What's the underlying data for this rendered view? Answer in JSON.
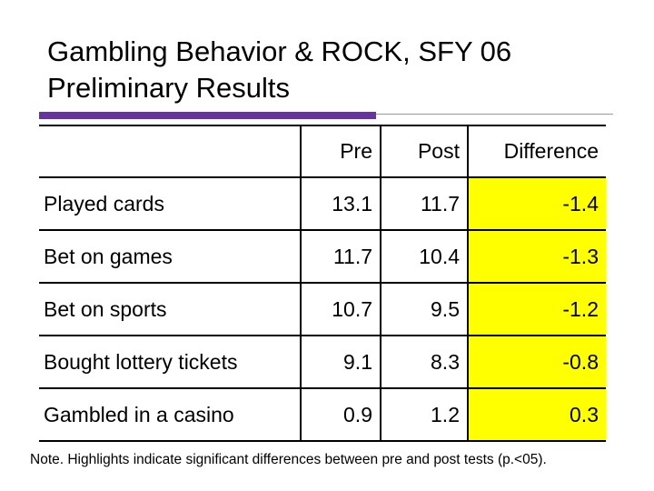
{
  "title": {
    "line1": "Gambling Behavior & ROCK, SFY 06",
    "line2": "Preliminary Results"
  },
  "colors": {
    "accent_bar": "#6633a0",
    "highlight": "#ffff00"
  },
  "table": {
    "headers": [
      "",
      "Pre",
      "Post",
      "Difference"
    ],
    "rows": [
      {
        "label": "Played cards",
        "pre": "13.1",
        "post": "11.7",
        "diff": "-1.4",
        "highlight": true
      },
      {
        "label": "Bet on games",
        "pre": "11.7",
        "post": "10.4",
        "diff": "-1.3",
        "highlight": true
      },
      {
        "label": "Bet on sports",
        "pre": "10.7",
        "post": "9.5",
        "diff": "-1.2",
        "highlight": true
      },
      {
        "label": "Bought lottery tickets",
        "pre": "9.1",
        "post": "8.3",
        "diff": "-0.8",
        "highlight": true
      },
      {
        "label": "Gambled in a casino",
        "pre": "0.9",
        "post": "1.2",
        "diff": "0.3",
        "highlight": true
      }
    ]
  },
  "note": "Note. Highlights indicate significant differences between pre and post tests (p.<05)."
}
